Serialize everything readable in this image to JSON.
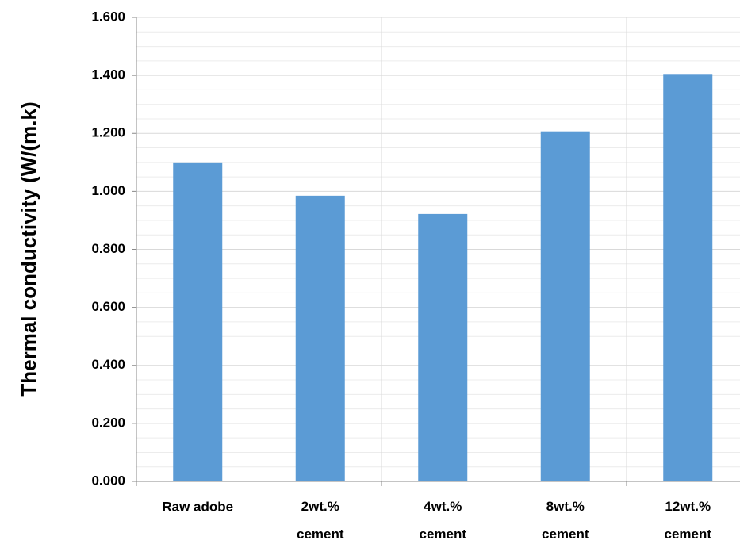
{
  "chart_data": {
    "type": "bar",
    "y_label": "Thermal conductivity (W/(m.k)",
    "categories": [
      "Raw adobe",
      "2wt.%\ncement",
      "4wt.%\ncement",
      "8wt.%\ncement",
      "12wt.%\ncement"
    ],
    "values": [
      1.1,
      0.985,
      0.922,
      1.207,
      1.405
    ],
    "color": "#5b9bd5",
    "ylim": [
      0,
      1.6
    ],
    "yticks": [
      {
        "value": 0,
        "label": "0.000"
      },
      {
        "value": 0.2,
        "label": "0.200"
      },
      {
        "value": 0.4,
        "label": "0.400"
      },
      {
        "value": 0.6,
        "label": "0.600"
      },
      {
        "value": 0.8,
        "label": "0.800"
      },
      {
        "value": 1.0,
        "label": "1.000"
      },
      {
        "value": 1.2,
        "label": "1.200"
      },
      {
        "value": 1.4,
        "label": "1.400"
      },
      {
        "value": 1.6,
        "label": "1.600"
      }
    ],
    "grid": true
  }
}
